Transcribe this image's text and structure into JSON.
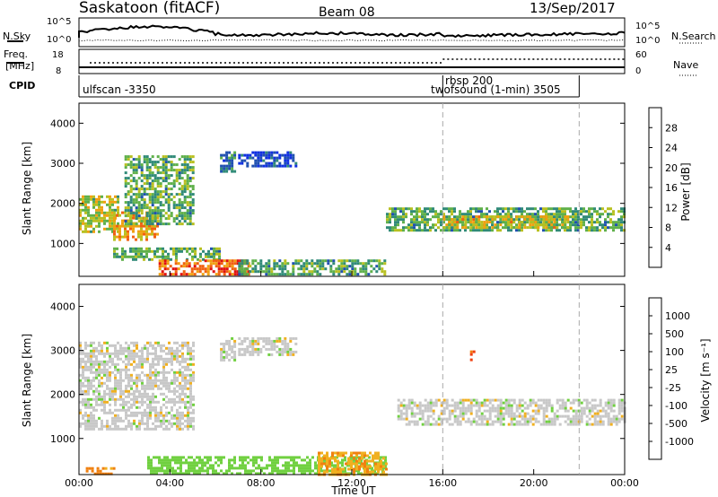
{
  "header": {
    "radar": "Saskatoon (fitACF)",
    "beam": "Beam 08",
    "date": "13/Sep/2017"
  },
  "noise_panel": {
    "left_label": "N.Sky",
    "right_label": "N.Search",
    "left_ticks": [
      "10^5",
      "10^0"
    ],
    "right_ticks": [
      "10^5",
      "10^0"
    ]
  },
  "freq_panel": {
    "left_label_1": "Freq.",
    "left_label_2": "[MHz]",
    "right_label": "Nave",
    "left_ticks": [
      "18",
      "8"
    ],
    "right_ticks": [
      "60",
      "0"
    ]
  },
  "cpid_panel": {
    "label": "CPID",
    "segments": [
      {
        "start_h": 0,
        "end_h": 16,
        "text": "ulfscan -3350"
      },
      {
        "start_h": 16,
        "end_h": 22,
        "text": "rbsp 200"
      },
      {
        "start_h": 16,
        "end_h": 22,
        "text": "twofsound (1-min) 3505"
      }
    ]
  },
  "x_axis": {
    "label": "Time UT",
    "ticks": [
      "00:00",
      "04:00",
      "08:00",
      "12:00",
      "16:00",
      "20:00",
      "00:00"
    ]
  },
  "power_panel": {
    "ylabel": "Slant Range [km]",
    "yticks": [
      "1000",
      "2000",
      "3000",
      "4000"
    ],
    "colorbar_label": "Power [dB]",
    "colorbar_ticks": [
      "4",
      "8",
      "12",
      "16",
      "20",
      "24",
      "28"
    ],
    "colorbar_colors": [
      "#1030e0",
      "#2050b0",
      "#308a78",
      "#5fb04a",
      "#b8c020",
      "#f0a010",
      "#f06010",
      "#e01010"
    ]
  },
  "velocity_panel": {
    "ylabel": "Slant Range [km]",
    "yticks": [
      "1000",
      "2000",
      "3000",
      "4000"
    ],
    "colorbar_label": "Velocity [m s⁻¹]",
    "colorbar_ticks": [
      "1000",
      "500",
      "100",
      "25",
      "-25",
      "-100",
      "-500",
      "-1000"
    ],
    "colorbar_colors": [
      "#2050c0",
      "#2a7a50",
      "#4aa040",
      "#70d040",
      "#c8c8c8",
      "#f0b020",
      "#f08010",
      "#f04010",
      "#e01010"
    ]
  },
  "chart_data": [
    {
      "type": "heatmap",
      "title": "Saskatoon (fitACF) Beam 08 13/Sep/2017",
      "xlabel": "Time UT",
      "ylabel": "Slant Range [km]",
      "xlim": [
        0,
        24
      ],
      "ylim": [
        180,
        4500
      ],
      "colorbar": {
        "label": "Power [dB]",
        "range": [
          0,
          30
        ]
      },
      "regions": [
        {
          "t": [
            0.0,
            1.7
          ],
          "range": [
            1300,
            2200
          ],
          "value": 16
        },
        {
          "t": [
            1.5,
            3.5
          ],
          "range": [
            1100,
            1800
          ],
          "value": 20
        },
        {
          "t": [
            2.0,
            5.0
          ],
          "range": [
            1500,
            3200
          ],
          "value": 12
        },
        {
          "t": [
            1.5,
            6.2
          ],
          "range": [
            600,
            900
          ],
          "value": 12
        },
        {
          "t": [
            3.5,
            7.5
          ],
          "range": [
            200,
            600
          ],
          "value": 24
        },
        {
          "t": [
            6.2,
            6.9
          ],
          "range": [
            2800,
            3300
          ],
          "value": 8
        },
        {
          "t": [
            7.0,
            9.6
          ],
          "range": [
            2900,
            3300
          ],
          "value": 4
        },
        {
          "t": [
            7.0,
            13.5
          ],
          "range": [
            200,
            600
          ],
          "value": 12
        },
        {
          "t": [
            13.5,
            24.0
          ],
          "range": [
            1300,
            1900
          ],
          "value": 12
        },
        {
          "t": [
            16.0,
            21.5
          ],
          "range": [
            1400,
            1700
          ],
          "value": 18
        }
      ]
    },
    {
      "type": "heatmap",
      "title": "",
      "xlabel": "Time UT",
      "ylabel": "Slant Range [km]",
      "xlim": [
        0,
        24
      ],
      "ylim": [
        180,
        4500
      ],
      "colorbar": {
        "label": "Velocity [m s⁻¹]",
        "range": [
          -1000,
          1000
        ]
      },
      "regions": [
        {
          "t": [
            0.0,
            5.0
          ],
          "range": [
            1200,
            3200
          ],
          "value": 0
        },
        {
          "t": [
            0.3,
            1.5
          ],
          "range": [
            180,
            350
          ],
          "value": -120
        },
        {
          "t": [
            3.0,
            13.5
          ],
          "range": [
            200,
            600
          ],
          "value": 60
        },
        {
          "t": [
            10.5,
            13.5
          ],
          "range": [
            200,
            700
          ],
          "value": -90
        },
        {
          "t": [
            6.2,
            6.9
          ],
          "range": [
            2800,
            3300
          ],
          "value": 0
        },
        {
          "t": [
            7.0,
            9.6
          ],
          "range": [
            2900,
            3300
          ],
          "value": 0
        },
        {
          "t": [
            14.0,
            24.0
          ],
          "range": [
            1300,
            1900
          ],
          "value": 0
        },
        {
          "t": [
            17.2,
            17.4
          ],
          "range": [
            2800,
            3000
          ],
          "value": -500
        }
      ]
    }
  ]
}
